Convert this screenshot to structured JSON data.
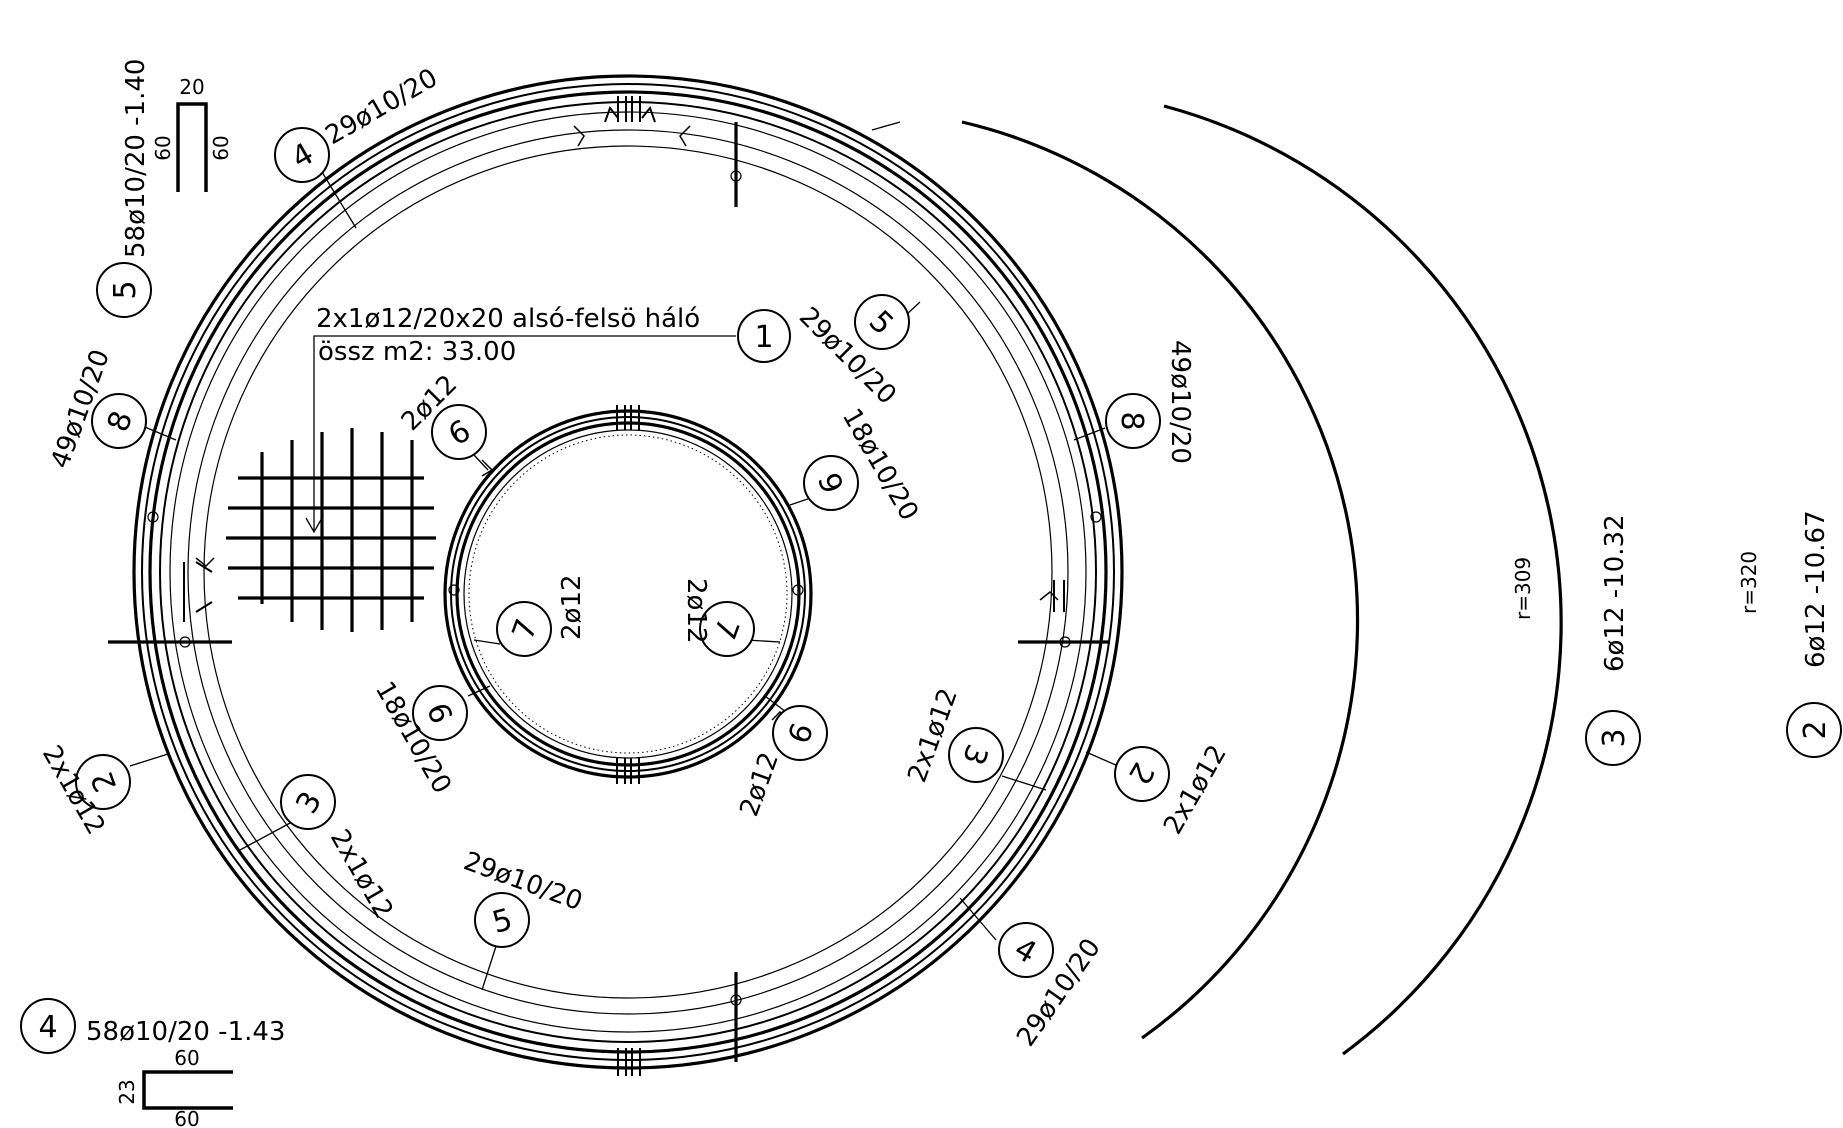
{
  "mesh_note": {
    "line1": "2x1ø12/20x20 alsó-felsö háló",
    "line2": "össz m2: 33.00",
    "tag": "1"
  },
  "bar_schedule": {
    "bar5": {
      "tag": "5",
      "text": "58ø10/20  -1.40",
      "top_dim": "20",
      "left_dim": "60",
      "right_dim": "60"
    },
    "bar4": {
      "tag": "4",
      "text": "58ø10/20  -1.43",
      "top_dim": "60",
      "left_dim": "23",
      "bottom_dim": "60"
    }
  },
  "bars": [
    {
      "tag": "4",
      "text": "29ø10/20"
    },
    {
      "tag": "8",
      "text": "49ø10/20"
    },
    {
      "tag": "6",
      "text": "2ø12"
    },
    {
      "tag": "5",
      "text": "29ø10/20"
    },
    {
      "tag": "9",
      "text": "18ø10/20"
    },
    {
      "tag": "8",
      "text": "49ø10/20"
    },
    {
      "tag": "7",
      "text": "2ø12"
    },
    {
      "tag": "7",
      "text": "2ø12"
    },
    {
      "tag": "9",
      "text": "18ø10/20"
    },
    {
      "tag": "6",
      "text": "2ø12"
    },
    {
      "tag": "2",
      "text": "2x1ø12"
    },
    {
      "tag": "3",
      "text": "2x1ø12"
    },
    {
      "tag": "5",
      "text": "29ø10/20"
    },
    {
      "tag": "3",
      "text": "2x1ø12"
    },
    {
      "tag": "2",
      "text": "2x1ø12"
    },
    {
      "tag": "4",
      "text": "29ø10/20"
    }
  ],
  "arcs": [
    {
      "tag": "3",
      "radius": "r=309",
      "text": "6ø12  -10.32"
    },
    {
      "tag": "2",
      "radius": "r=320",
      "text": "6ø12  -10.67"
    }
  ]
}
